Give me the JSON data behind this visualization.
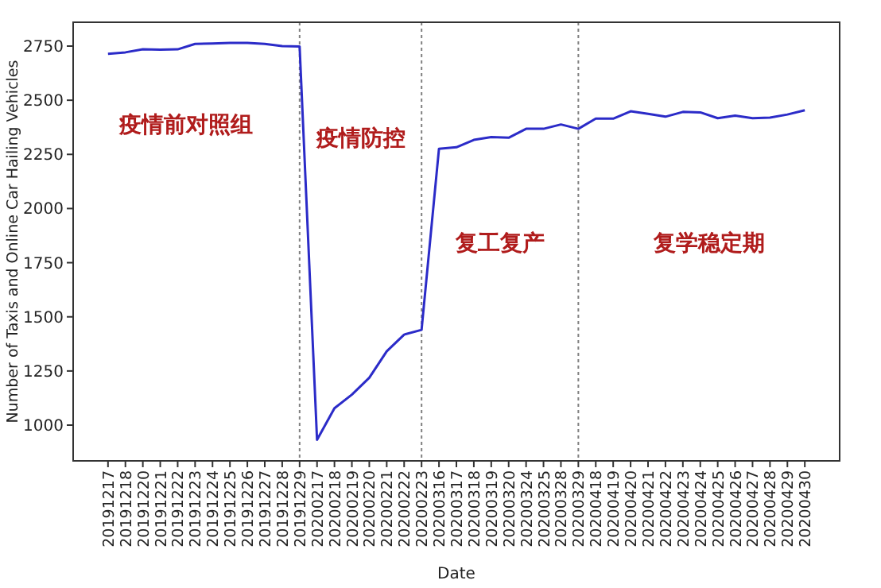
{
  "chart_data": {
    "type": "line",
    "xlabel": "Date",
    "ylabel": "Number of Taxis and Online Car Hailing Vehicles",
    "categories": [
      "20191217",
      "20191218",
      "20191220",
      "20191221",
      "20191222",
      "20191223",
      "20191224",
      "20191225",
      "20191226",
      "20191227",
      "20191228",
      "20191229",
      "20200217",
      "20200218",
      "20200219",
      "20200220",
      "20200221",
      "20200222",
      "20200223",
      "20200316",
      "20200317",
      "20200318",
      "20200319",
      "20200320",
      "20200324",
      "20200325",
      "20200328",
      "20200329",
      "20200418",
      "20200419",
      "20200420",
      "20200421",
      "20200422",
      "20200423",
      "20200424",
      "20200425",
      "20200426",
      "20200427",
      "20200428",
      "20200429",
      "20200430"
    ],
    "series": [
      {
        "color": "#2b2bc8",
        "values": [
          2714,
          2721,
          2735,
          2733,
          2735,
          2760,
          2762,
          2765,
          2765,
          2760,
          2750,
          2748,
          932,
          1078,
          1141,
          1219,
          1341,
          1418,
          1440,
          2276,
          2283,
          2317,
          2330,
          2327,
          2368,
          2368,
          2388,
          2368,
          2415,
          2415,
          2449,
          2437,
          2424,
          2446,
          2444,
          2417,
          2429,
          2417,
          2420,
          2434,
          2454
        ]
      }
    ],
    "ylim": [
      835,
      2860
    ],
    "yticks": [
      1000,
      1250,
      1500,
      1750,
      2000,
      2250,
      2500,
      2750
    ],
    "ref_lines": [
      {
        "axis": "x",
        "value": "20191229",
        "color": "#808080",
        "line_style": "dotted"
      },
      {
        "axis": "x",
        "value": "20200223",
        "color": "#808080",
        "line_style": "dotted"
      },
      {
        "axis": "x",
        "value": "20200329",
        "color": "#808080",
        "line_style": "dotted"
      }
    ],
    "annotations": [
      "疫情前对照组",
      "疫情防控",
      "复工复产",
      "复学稳定期"
    ],
    "grid": false,
    "marker": "none",
    "line_style": "solid"
  }
}
